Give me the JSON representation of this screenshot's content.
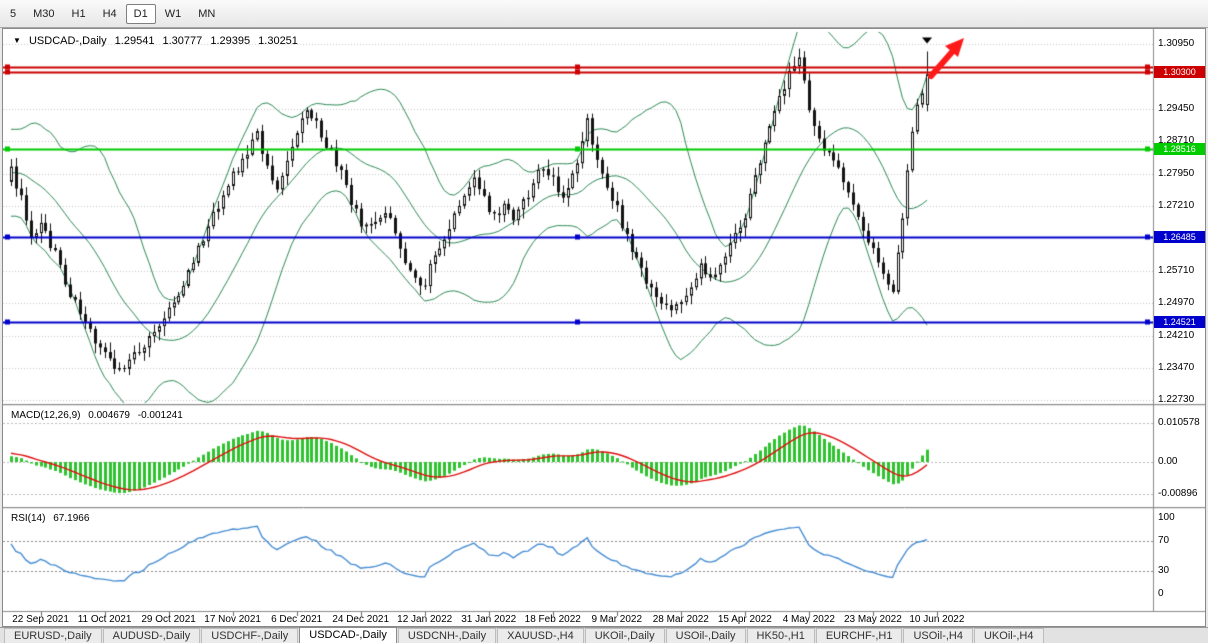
{
  "toolbar": {
    "buttons": [
      {
        "label": "5",
        "active": false
      },
      {
        "label": "M30",
        "active": false
      },
      {
        "label": "H1",
        "active": false
      },
      {
        "label": "H4",
        "active": false
      },
      {
        "label": "D1",
        "active": true
      },
      {
        "label": "W1",
        "active": false
      },
      {
        "label": "MN",
        "active": false
      }
    ]
  },
  "chart_header": {
    "symbol": "USDCAD-,Daily",
    "open": "1.29541",
    "high": "1.30777",
    "low": "1.29395",
    "close": "1.30251"
  },
  "indicators": {
    "macd": {
      "label": "MACD(12,26,9)",
      "value": "0.004679",
      "signal_value": "-0.001241",
      "axis_labels": [
        "0.010578",
        "0.00",
        "-0.00896"
      ],
      "axis_values": [
        0.010578,
        0,
        -0.00896
      ]
    },
    "rsi": {
      "label": "RSI(14)",
      "value": "67.1966",
      "axis_labels": [
        "100",
        "70",
        "30",
        "0"
      ],
      "axis_values": [
        100,
        70,
        30,
        0
      ],
      "levels": [
        70,
        30
      ]
    }
  },
  "price_axis": {
    "labels": [
      "1.30950",
      "1.29450",
      "1.28710",
      "1.27950",
      "1.27210",
      "1.25710",
      "1.24970",
      "1.24210",
      "1.23470",
      "1.22730"
    ],
    "values": [
      1.3095,
      1.2945,
      1.2871,
      1.2795,
      1.2721,
      1.2571,
      1.2497,
      1.2421,
      1.2347,
      1.2273
    ]
  },
  "hlines": [
    {
      "value": 1.3041,
      "color": "#cc0000",
      "badge": null
    },
    {
      "value": 1.303,
      "color": "#cc0000",
      "badge": "1.30300"
    },
    {
      "value": 1.28516,
      "color": "#00cc00",
      "badge": "1.28516"
    },
    {
      "value": 1.26485,
      "color": "#0000cc",
      "badge": "1.26485"
    },
    {
      "value": 1.24521,
      "color": "#0000cc",
      "badge": "1.24521"
    }
  ],
  "date_axis": [
    {
      "label": "22 Sep 2021",
      "i": 6
    },
    {
      "label": "11 Oct 2021",
      "i": 19
    },
    {
      "label": "29 Oct 2021",
      "i": 32
    },
    {
      "label": "17 Nov 2021",
      "i": 45
    },
    {
      "label": "6 Dec 2021",
      "i": 58
    },
    {
      "label": "24 Dec 2021",
      "i": 71
    },
    {
      "label": "12 Jan 2022",
      "i": 84
    },
    {
      "label": "31 Jan 2022",
      "i": 97
    },
    {
      "label": "18 Feb 2022",
      "i": 110
    },
    {
      "label": "9 Mar 2022",
      "i": 123
    },
    {
      "label": "28 Mar 2022",
      "i": 136
    },
    {
      "label": "15 Apr 2022",
      "i": 149
    },
    {
      "label": "4 May 2022",
      "i": 162
    },
    {
      "label": "23 May 2022",
      "i": 175
    },
    {
      "label": "10 Jun 2022",
      "i": 188
    }
  ],
  "chart_data": {
    "type": "candlestick",
    "symbol": "USDCAD",
    "timeframe": "Daily",
    "candles_count": 187,
    "visible_price_range": {
      "top": 1.31227,
      "bottom": 1.22659
    },
    "last_candle": {
      "open": 1.29541,
      "high": 1.30777,
      "low": 1.29395,
      "close": 1.30251
    },
    "noise_amplitude": 0.0026,
    "pre_anchors": [
      [
        -26,
        1.262
      ],
      [
        -18,
        1.2785
      ],
      [
        -10,
        1.2885
      ],
      [
        -5,
        1.2705
      ]
    ],
    "close_anchors": [
      [
        0,
        1.28
      ],
      [
        2,
        1.2742
      ],
      [
        4,
        1.2658
      ],
      [
        6,
        1.2683
      ],
      [
        9,
        1.2608
      ],
      [
        12,
        1.2512
      ],
      [
        15,
        1.2452
      ],
      [
        18,
        1.2385
      ],
      [
        21,
        1.2346
      ],
      [
        24,
        1.236
      ],
      [
        27,
        1.2398
      ],
      [
        30,
        1.2438
      ],
      [
        33,
        1.2492
      ],
      [
        36,
        1.2572
      ],
      [
        39,
        1.2648
      ],
      [
        42,
        1.2718
      ],
      [
        45,
        1.2788
      ],
      [
        48,
        1.2848
      ],
      [
        50,
        1.2888
      ],
      [
        52,
        1.2808
      ],
      [
        54,
        1.2752
      ],
      [
        56,
        1.2838
      ],
      [
        58,
        1.2898
      ],
      [
        60,
        1.2948
      ],
      [
        62,
        1.2912
      ],
      [
        64,
        1.2858
      ],
      [
        66,
        1.2822
      ],
      [
        68,
        1.2762
      ],
      [
        70,
        1.2706
      ],
      [
        72,
        1.2666
      ],
      [
        74,
        1.2692
      ],
      [
        76,
        1.2712
      ],
      [
        78,
        1.2652
      ],
      [
        80,
        1.2592
      ],
      [
        82,
        1.2552
      ],
      [
        84,
        1.2548
      ],
      [
        86,
        1.2602
      ],
      [
        88,
        1.2652
      ],
      [
        90,
        1.2702
      ],
      [
        92,
        1.2752
      ],
      [
        94,
        1.2782
      ],
      [
        96,
        1.2732
      ],
      [
        98,
        1.2702
      ],
      [
        100,
        1.2722
      ],
      [
        102,
        1.2692
      ],
      [
        104,
        1.2732
      ],
      [
        106,
        1.2772
      ],
      [
        108,
        1.2812
      ],
      [
        110,
        1.2782
      ],
      [
        112,
        1.2742
      ],
      [
        114,
        1.2792
      ],
      [
        116,
        1.2872
      ],
      [
        117,
        1.2922
      ],
      [
        118,
        1.2862
      ],
      [
        120,
        1.2802
      ],
      [
        122,
        1.2742
      ],
      [
        124,
        1.2682
      ],
      [
        126,
        1.2622
      ],
      [
        128,
        1.2572
      ],
      [
        130,
        1.2522
      ],
      [
        132,
        1.2496
      ],
      [
        134,
        1.2476
      ],
      [
        136,
        1.2502
      ],
      [
        138,
        1.2546
      ],
      [
        140,
        1.2582
      ],
      [
        142,
        1.2562
      ],
      [
        144,
        1.2588
      ],
      [
        146,
        1.2628
      ],
      [
        148,
        1.2672
      ],
      [
        150,
        1.2738
      ],
      [
        152,
        1.2822
      ],
      [
        154,
        1.2902
      ],
      [
        156,
        1.2972
      ],
      [
        158,
        1.3028
      ],
      [
        160,
        1.3062
      ],
      [
        161,
        1.3002
      ],
      [
        162,
        1.2942
      ],
      [
        164,
        1.2882
      ],
      [
        166,
        1.2832
      ],
      [
        168,
        1.2802
      ],
      [
        170,
        1.2762
      ],
      [
        172,
        1.2702
      ],
      [
        174,
        1.2642
      ],
      [
        176,
        1.2582
      ],
      [
        178,
        1.2532
      ],
      [
        179,
        1.2522
      ],
      [
        180,
        1.2602
      ],
      [
        181,
        1.2702
      ],
      [
        182,
        1.2812
      ],
      [
        183,
        1.2902
      ],
      [
        184,
        1.2952
      ],
      [
        185,
        1.2992
      ],
      [
        186,
        1.30251
      ]
    ],
    "overlays": {
      "bollinger_bands": {
        "period": 20,
        "deviation": 2
      }
    },
    "lower_panels": [
      "MACD(12,26,9)",
      "RSI(14)"
    ]
  },
  "annotations": {
    "arrow": {
      "type": "up-right-arrow",
      "color": "#ff1a1a"
    },
    "last_candle_marker": {
      "type": "down-triangle",
      "color": "#000000"
    }
  },
  "colors": {
    "candle": "#141414",
    "candle_bull_fill": "#ffffff",
    "bollinger": "#2e8b57",
    "macd_histogram": "#2fc42f",
    "macd_signal": "#e01010",
    "rsi_line": "#4a8fd4",
    "grid": "#c9c9c9"
  },
  "tabbar": {
    "tabs": [
      {
        "label": "EURUSD-,Daily",
        "active": false
      },
      {
        "label": "AUDUSD-,Daily",
        "active": false
      },
      {
        "label": "USDCHF-,Daily",
        "active": false
      },
      {
        "label": "USDCAD-,Daily",
        "active": true
      },
      {
        "label": "USDCNH-,Daily",
        "active": false
      },
      {
        "label": "XAUUSD-,H4",
        "active": false
      },
      {
        "label": "UKOil-,Daily",
        "active": false
      },
      {
        "label": "USOil-,Daily",
        "active": false
      },
      {
        "label": "HK50-,H1",
        "active": false
      },
      {
        "label": "EURCHF-,H1",
        "active": false
      },
      {
        "label": "USOil-,H4",
        "active": false
      },
      {
        "label": "UKOil-,H4",
        "active": false
      }
    ]
  }
}
